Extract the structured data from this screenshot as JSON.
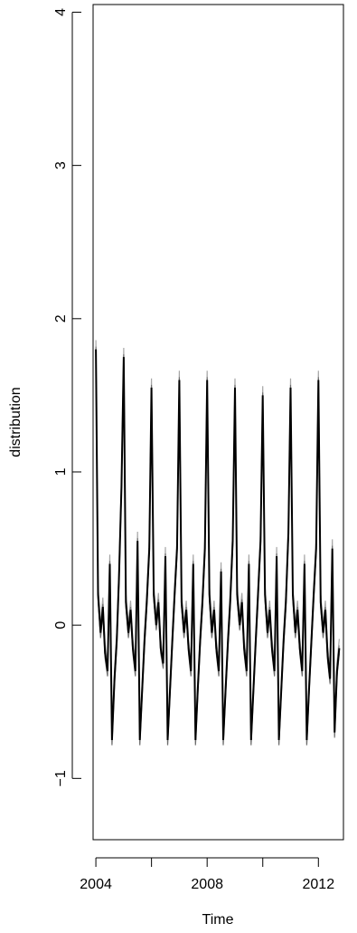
{
  "chart_data": {
    "type": "line",
    "title": "",
    "xlabel": "Time",
    "ylabel": "distribution",
    "xlim": [
      2003.9,
      2012.9
    ],
    "ylim": [
      -1.4,
      4.05
    ],
    "x_ticks": [
      2004,
      2006,
      2008,
      2010,
      2012
    ],
    "x_tick_labels": [
      "2004",
      "",
      "2008",
      "",
      "2012"
    ],
    "y_ticks": [
      -1,
      0,
      1,
      2,
      3,
      4
    ],
    "y_tick_labels": [
      "−1",
      "0",
      "1",
      "2",
      "3",
      "4"
    ],
    "grid": false,
    "legend": "none",
    "color": "#000000",
    "series": [
      {
        "x": [
          2004.0,
          2004.08,
          2004.17,
          2004.25,
          2004.33,
          2004.42,
          2004.5,
          2004.58,
          2004.67,
          2004.75,
          2004.83,
          2004.92,
          2005.0,
          2005.08,
          2005.17,
          2005.25,
          2005.33,
          2005.42,
          2005.5,
          2005.58,
          2005.67,
          2005.75,
          2005.83,
          2005.92,
          2006.0,
          2006.08,
          2006.17,
          2006.25,
          2006.33,
          2006.42,
          2006.5,
          2006.58,
          2006.67,
          2006.75,
          2006.83,
          2006.92,
          2007.0,
          2007.08,
          2007.17,
          2007.25,
          2007.33,
          2007.42,
          2007.5,
          2007.58,
          2007.67,
          2007.75,
          2007.83,
          2007.92,
          2008.0,
          2008.08,
          2008.17,
          2008.25,
          2008.33,
          2008.42,
          2008.5,
          2008.58,
          2008.67,
          2008.75,
          2008.83,
          2008.92,
          2009.0,
          2009.08,
          2009.17,
          2009.25,
          2009.33,
          2009.42,
          2009.5,
          2009.58,
          2009.67,
          2009.75,
          2009.83,
          2009.92,
          2010.0,
          2010.08,
          2010.17,
          2010.25,
          2010.33,
          2010.42,
          2010.5,
          2010.58,
          2010.67,
          2010.75,
          2010.83,
          2010.92,
          2011.0,
          2011.08,
          2011.17,
          2011.25,
          2011.33,
          2011.42,
          2011.5,
          2011.58,
          2011.67,
          2011.75,
          2011.83,
          2011.92,
          2012.0,
          2012.08,
          2012.17,
          2012.25,
          2012.33,
          2012.42,
          2012.5,
          2012.58,
          2012.67,
          2012.75
        ],
        "y": [
          1.8,
          0.2,
          -0.05,
          0.12,
          -0.18,
          -0.3,
          0.4,
          -0.75,
          -0.35,
          -0.1,
          0.3,
          0.9,
          1.75,
          0.15,
          -0.05,
          0.1,
          -0.15,
          -0.3,
          0.55,
          -0.75,
          -0.4,
          -0.1,
          0.15,
          0.5,
          1.55,
          0.2,
          0.0,
          0.15,
          -0.15,
          -0.25,
          0.45,
          -0.75,
          -0.4,
          -0.1,
          0.2,
          0.5,
          1.6,
          0.15,
          -0.05,
          0.1,
          -0.15,
          -0.3,
          0.4,
          -0.75,
          -0.4,
          -0.1,
          0.15,
          0.5,
          1.6,
          0.2,
          -0.05,
          0.1,
          -0.15,
          -0.3,
          0.35,
          -0.75,
          -0.4,
          -0.1,
          0.15,
          0.55,
          1.55,
          0.2,
          0.0,
          0.15,
          -0.15,
          -0.3,
          0.4,
          -0.75,
          -0.4,
          -0.1,
          0.2,
          0.55,
          1.5,
          0.2,
          -0.05,
          0.1,
          -0.15,
          -0.3,
          0.45,
          -0.75,
          -0.4,
          -0.1,
          0.15,
          0.6,
          1.55,
          0.2,
          -0.05,
          0.1,
          -0.15,
          -0.3,
          0.4,
          -0.75,
          -0.4,
          -0.1,
          0.2,
          0.5,
          1.6,
          0.15,
          -0.05,
          0.1,
          -0.2,
          -0.35,
          0.5,
          -0.7,
          -0.3,
          -0.15
        ]
      }
    ]
  }
}
